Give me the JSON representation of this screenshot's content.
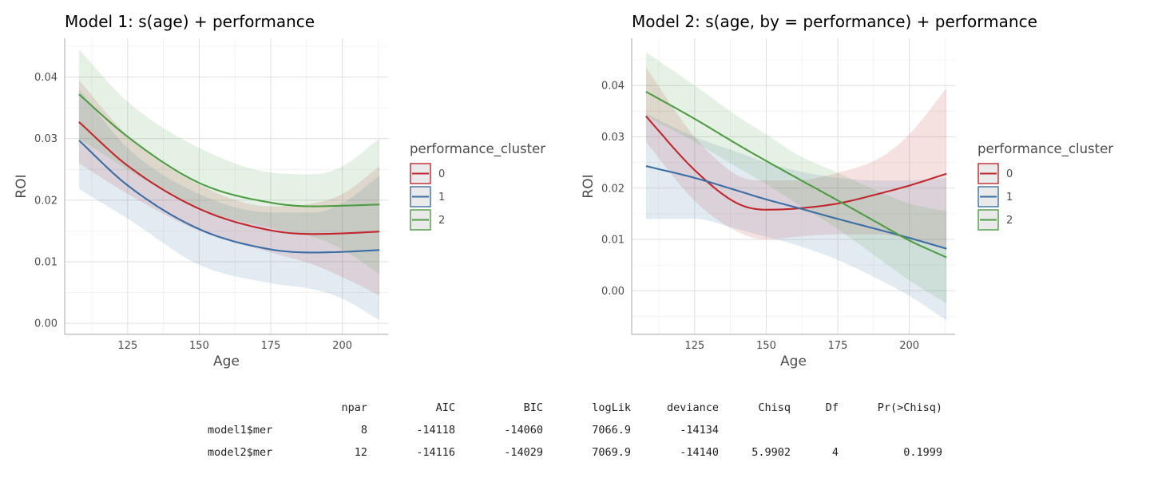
{
  "chart_data": [
    {
      "type": "line",
      "title": "Model 1: s(age) + performance",
      "xlabel": "Age",
      "ylabel": "ROI",
      "xlim": [
        103,
        216
      ],
      "ylim": [
        -0.0018,
        0.0463
      ],
      "xticks": [
        125,
        150,
        175,
        200
      ],
      "yticks": [
        0.0,
        0.01,
        0.02,
        0.03,
        0.04
      ],
      "ytick_labels": [
        "0.00",
        "0.01",
        "0.02",
        "0.03",
        "0.04"
      ],
      "grid": true,
      "legend": {
        "title": "performance_cluster",
        "position": "right"
      },
      "x": [
        108,
        125,
        150,
        175,
        190,
        200,
        213
      ],
      "series": [
        {
          "name": "0",
          "color": "#c0282d",
          "values": [
            0.0327,
            0.0256,
            0.0186,
            0.0151,
            0.0145,
            0.0146,
            0.0149
          ],
          "lower": [
            0.026,
            0.021,
            0.015,
            0.0115,
            0.0095,
            0.0075,
            0.0045
          ],
          "upper": [
            0.0395,
            0.0305,
            0.0225,
            0.019,
            0.0195,
            0.021,
            0.0255
          ]
        },
        {
          "name": "1",
          "color": "#3c6ea6",
          "values": [
            0.0297,
            0.0224,
            0.0153,
            0.012,
            0.0115,
            0.0116,
            0.0119
          ],
          "lower": [
            0.0218,
            0.017,
            0.0095,
            0.0065,
            0.0055,
            0.004,
            0.0005
          ],
          "upper": [
            0.038,
            0.0285,
            0.021,
            0.018,
            0.018,
            0.0195,
            0.024
          ]
        },
        {
          "name": "2",
          "color": "#4e9c44",
          "values": [
            0.0372,
            0.0303,
            0.0228,
            0.0196,
            0.019,
            0.0191,
            0.0193
          ],
          "lower": [
            0.03,
            0.025,
            0.0185,
            0.0155,
            0.014,
            0.012,
            0.008
          ],
          "upper": [
            0.0445,
            0.036,
            0.0285,
            0.0245,
            0.0242,
            0.0255,
            0.03
          ]
        }
      ]
    },
    {
      "type": "line",
      "title": "Model 2: s(age, by = performance) + performance",
      "xlabel": "Age",
      "ylabel": "ROI",
      "xlim": [
        103,
        216
      ],
      "ylim": [
        -0.0085,
        0.0492
      ],
      "xticks": [
        125,
        150,
        175,
        200
      ],
      "yticks": [
        0.0,
        0.01,
        0.02,
        0.03,
        0.04
      ],
      "ytick_labels": [
        "0.00",
        "0.01",
        "0.02",
        "0.03",
        "0.04"
      ],
      "grid": true,
      "legend": {
        "title": "performance_cluster",
        "position": "right"
      },
      "x": [
        108,
        125,
        140,
        150,
        160,
        175,
        190,
        200,
        213
      ],
      "series": [
        {
          "name": "0",
          "color": "#c0282d",
          "values": [
            0.034,
            0.0235,
            0.017,
            0.0158,
            0.016,
            0.017,
            0.019,
            0.0205,
            0.0228
          ],
          "lower": [
            0.029,
            0.0175,
            0.0115,
            0.01,
            0.0105,
            0.011,
            0.011,
            0.01,
            0.008
          ],
          "upper": [
            0.0435,
            0.03,
            0.0225,
            0.0215,
            0.0215,
            0.023,
            0.026,
            0.0305,
            0.0395
          ]
        },
        {
          "name": "1",
          "color": "#3c6ea6",
          "values": [
            0.0243,
            0.022,
            0.0195,
            0.0178,
            0.0163,
            0.014,
            0.0118,
            0.0103,
            0.0082
          ],
          "lower": [
            0.014,
            0.014,
            0.012,
            0.0105,
            0.009,
            0.006,
            0.002,
            -0.001,
            -0.0058
          ],
          "upper": [
            0.0345,
            0.03,
            0.027,
            0.025,
            0.0235,
            0.022,
            0.0215,
            0.0215,
            0.022
          ]
        },
        {
          "name": "2",
          "color": "#4e9c44",
          "values": [
            0.0388,
            0.0335,
            0.0285,
            0.0253,
            0.0222,
            0.0176,
            0.0129,
            0.0098,
            0.0065
          ],
          "lower": [
            0.034,
            0.029,
            0.024,
            0.0208,
            0.0172,
            0.012,
            0.006,
            0.002,
            -0.0025
          ],
          "upper": [
            0.0465,
            0.04,
            0.034,
            0.0305,
            0.0268,
            0.023,
            0.0192,
            0.017,
            0.0155
          ]
        }
      ]
    },
    {
      "type": "table",
      "columns": [
        "",
        "npar",
        "AIC",
        "BIC",
        "logLik",
        "deviance",
        "Chisq",
        "Df",
        "Pr(>Chisq)"
      ],
      "rows": [
        [
          "model1$mer",
          "8",
          "-14118",
          "-14060",
          "7066.9",
          "-14134",
          "",
          "",
          ""
        ],
        [
          "model2$mer",
          "12",
          "-14116",
          "-14029",
          "7069.9",
          "-14140",
          "5.9902",
          "4",
          "0.1999"
        ]
      ]
    }
  ]
}
